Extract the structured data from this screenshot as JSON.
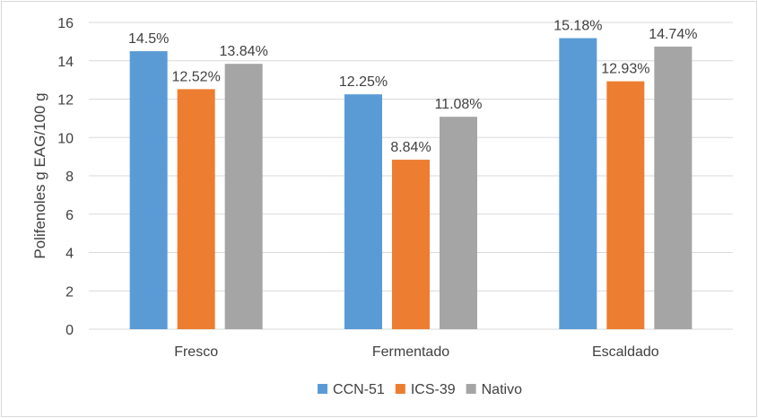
{
  "chart_data": {
    "type": "bar",
    "title": "",
    "xlabel": "",
    "ylabel": "Polifenoles g EAG/100 g",
    "categories": [
      "Fresco",
      "Fermentado",
      "Escaldado"
    ],
    "series": [
      {
        "name": "CCN-51",
        "color": "#5b9bd5",
        "values": [
          14.5,
          12.25,
          15.18
        ],
        "labels": [
          "14.5%",
          "12.25%",
          "15.18%"
        ]
      },
      {
        "name": "ICS-39",
        "color": "#ed7d31",
        "values": [
          12.52,
          8.84,
          12.93
        ],
        "labels": [
          "12.52%",
          "8.84%",
          "12.93%"
        ]
      },
      {
        "name": "Nativo",
        "color": "#a5a5a5",
        "values": [
          13.84,
          11.08,
          14.74
        ],
        "labels": [
          "13.84%",
          "11.08%",
          "14.74%"
        ]
      }
    ],
    "ylim": [
      0,
      16
    ],
    "yticks": [
      0,
      2,
      4,
      6,
      8,
      10,
      12,
      14,
      16
    ],
    "ytick_labels": [
      "0",
      "2",
      "4",
      "6",
      "8",
      "10",
      "12",
      "14",
      "16"
    ],
    "grid": true,
    "gridline_color": "#d9d9d9",
    "legend_position": "bottom"
  }
}
